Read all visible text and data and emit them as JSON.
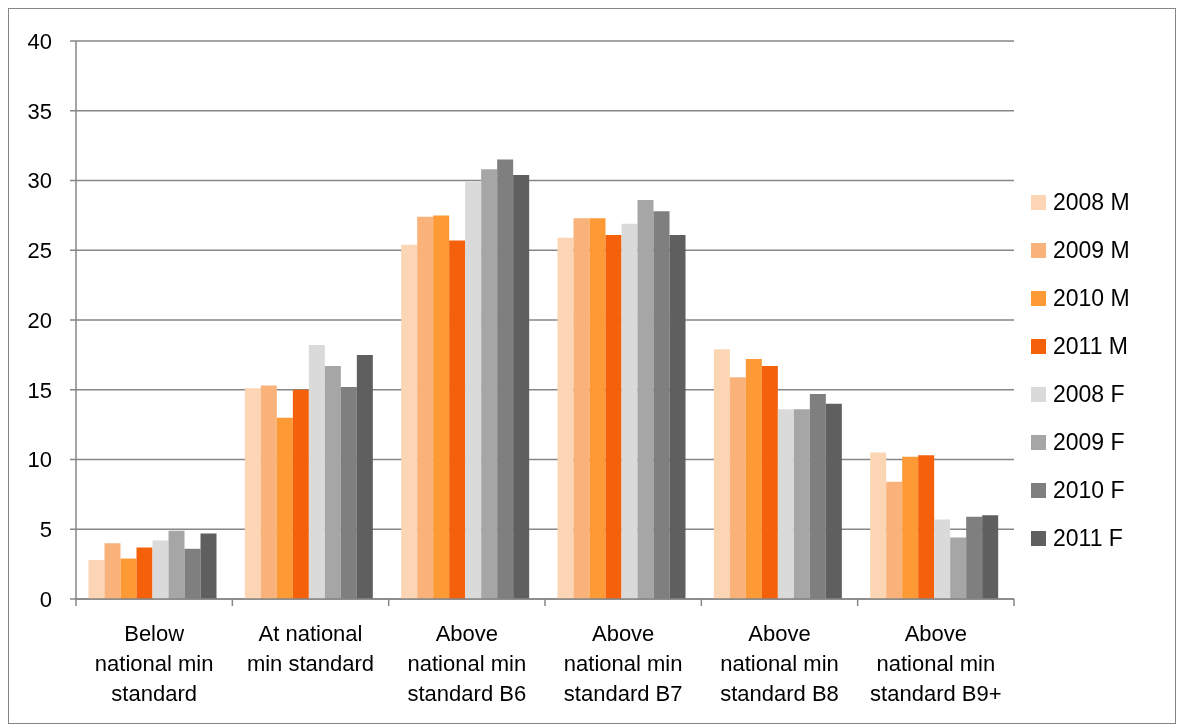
{
  "chart_data": {
    "type": "bar",
    "categories": [
      "Below national min standard",
      "At national min standard",
      "Above national min standard B6",
      "Above national min standard B7",
      "Above national min standard B8",
      "Above national min standard B9+"
    ],
    "series": [
      {
        "name": "2008 M",
        "color": "#fcd5b4",
        "values": [
          2.8,
          15.1,
          25.4,
          25.9,
          17.9,
          10.5
        ]
      },
      {
        "name": "2009 M",
        "color": "#f9b27a",
        "values": [
          4.0,
          15.3,
          27.4,
          27.3,
          15.9,
          8.4
        ]
      },
      {
        "name": "2010 M",
        "color": "#fd9a35",
        "values": [
          2.9,
          13.0,
          27.5,
          27.3,
          17.2,
          10.2
        ]
      },
      {
        "name": "2011 M",
        "color": "#f5600b",
        "values": [
          3.7,
          15.0,
          25.7,
          26.1,
          16.7,
          10.3
        ]
      },
      {
        "name": "2008 F",
        "color": "#dadada",
        "values": [
          4.2,
          18.2,
          29.9,
          26.9,
          13.6,
          5.7
        ]
      },
      {
        "name": "2009 F",
        "color": "#a6a6a6",
        "values": [
          4.9,
          16.7,
          30.8,
          28.6,
          13.6,
          4.4
        ]
      },
      {
        "name": "2010 F",
        "color": "#7f7f7f",
        "values": [
          3.6,
          15.2,
          31.5,
          27.8,
          14.7,
          5.9
        ]
      },
      {
        "name": "2011 F",
        "color": "#5f5f5f",
        "values": [
          4.7,
          17.5,
          30.4,
          26.1,
          14.0,
          6.0
        ]
      }
    ],
    "ylim": [
      0,
      40
    ],
    "yticks": [
      0,
      5,
      10,
      15,
      20,
      25,
      30,
      35,
      40
    ],
    "grid": "y",
    "legend": "right"
  }
}
